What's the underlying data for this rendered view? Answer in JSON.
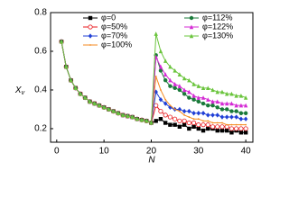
{
  "chart_data": {
    "type": "line",
    "x_label": "N",
    "y_label": "X",
    "y_label_sub": "v",
    "x": [
      1,
      2,
      3,
      4,
      5,
      6,
      7,
      8,
      9,
      10,
      11,
      12,
      13,
      14,
      15,
      16,
      17,
      18,
      19,
      20,
      21,
      22,
      23,
      24,
      25,
      26,
      27,
      28,
      29,
      30,
      31,
      32,
      33,
      34,
      35,
      36,
      37,
      38,
      39,
      40
    ],
    "series": [
      {
        "name": "φ=0",
        "color": "#000000",
        "marker": "square",
        "values": [
          0.65,
          0.52,
          0.45,
          0.41,
          0.38,
          0.36,
          0.34,
          0.33,
          0.32,
          0.31,
          0.3,
          0.29,
          0.28,
          0.27,
          0.265,
          0.26,
          0.25,
          0.245,
          0.24,
          0.23,
          0.24,
          0.25,
          0.23,
          0.22,
          0.22,
          0.21,
          0.22,
          0.2,
          0.21,
          0.2,
          0.19,
          0.2,
          0.2,
          0.19,
          0.19,
          0.19,
          0.18,
          0.19,
          0.18,
          0.18
        ]
      },
      {
        "name": "φ=50%",
        "color": "#e8191e",
        "marker": "circle-open",
        "values": [
          0.65,
          0.52,
          0.45,
          0.41,
          0.38,
          0.36,
          0.34,
          0.33,
          0.32,
          0.31,
          0.3,
          0.29,
          0.28,
          0.27,
          0.265,
          0.26,
          0.25,
          0.245,
          0.24,
          0.23,
          0.32,
          0.29,
          0.27,
          0.26,
          0.25,
          0.24,
          0.24,
          0.23,
          0.23,
          0.22,
          0.22,
          0.22,
          0.21,
          0.21,
          0.21,
          0.21,
          0.2,
          0.2,
          0.2,
          0.2
        ]
      },
      {
        "name": "φ=70%",
        "color": "#1f3fd6",
        "marker": "diamond",
        "values": [
          0.65,
          0.52,
          0.45,
          0.41,
          0.38,
          0.36,
          0.34,
          0.33,
          0.32,
          0.31,
          0.3,
          0.29,
          0.28,
          0.27,
          0.265,
          0.26,
          0.25,
          0.245,
          0.24,
          0.23,
          0.39,
          0.35,
          0.33,
          0.31,
          0.3,
          0.3,
          0.29,
          0.29,
          0.28,
          0.28,
          0.28,
          0.27,
          0.27,
          0.27,
          0.26,
          0.26,
          0.26,
          0.26,
          0.25,
          0.25
        ]
      },
      {
        "name": "φ=100%",
        "color": "#f58a1f",
        "marker": "none",
        "values": [
          0.65,
          0.52,
          0.45,
          0.41,
          0.38,
          0.36,
          0.34,
          0.33,
          0.32,
          0.31,
          0.3,
          0.29,
          0.28,
          0.27,
          0.265,
          0.26,
          0.25,
          0.245,
          0.24,
          0.23,
          0.47,
          0.4,
          0.35,
          0.32,
          0.3,
          0.29,
          0.27,
          0.26,
          0.25,
          0.25,
          0.24,
          0.24,
          0.23,
          0.23,
          0.23,
          0.22,
          0.22,
          0.22,
          0.22,
          0.22
        ]
      },
      {
        "name": "φ=112%",
        "color": "#1a7a3a",
        "marker": "circle",
        "values": [
          0.65,
          0.52,
          0.45,
          0.41,
          0.38,
          0.36,
          0.34,
          0.33,
          0.32,
          0.31,
          0.3,
          0.29,
          0.28,
          0.27,
          0.265,
          0.26,
          0.25,
          0.245,
          0.24,
          0.23,
          0.58,
          0.5,
          0.45,
          0.42,
          0.41,
          0.4,
          0.38,
          0.36,
          0.35,
          0.34,
          0.33,
          0.32,
          0.32,
          0.31,
          0.3,
          0.3,
          0.29,
          0.29,
          0.28,
          0.28
        ]
      },
      {
        "name": "φ=122%",
        "color": "#d42ad4",
        "marker": "triangle",
        "values": [
          0.65,
          0.52,
          0.45,
          0.41,
          0.38,
          0.36,
          0.34,
          0.33,
          0.32,
          0.31,
          0.3,
          0.29,
          0.28,
          0.27,
          0.265,
          0.26,
          0.25,
          0.245,
          0.24,
          0.23,
          0.57,
          0.52,
          0.48,
          0.45,
          0.43,
          0.42,
          0.4,
          0.39,
          0.37,
          0.36,
          0.36,
          0.35,
          0.34,
          0.34,
          0.33,
          0.33,
          0.33,
          0.32,
          0.32,
          0.32
        ]
      },
      {
        "name": "φ=130%",
        "color": "#6ac43c",
        "marker": "triangle",
        "values": [
          0.65,
          0.52,
          0.45,
          0.41,
          0.38,
          0.36,
          0.34,
          0.33,
          0.32,
          0.31,
          0.3,
          0.29,
          0.28,
          0.27,
          0.265,
          0.26,
          0.25,
          0.245,
          0.24,
          0.23,
          0.69,
          0.6,
          0.55,
          0.52,
          0.5,
          0.48,
          0.46,
          0.45,
          0.43,
          0.42,
          0.41,
          0.41,
          0.4,
          0.39,
          0.39,
          0.38,
          0.38,
          0.37,
          0.37,
          0.36
        ]
      }
    ],
    "xlim": [
      -1.3,
      41.5
    ],
    "xticks": [
      0,
      10,
      20,
      30,
      40
    ],
    "ylim": [
      0.13,
      0.8
    ],
    "yticks": [
      0.2,
      0.4,
      0.6,
      0.8
    ]
  }
}
